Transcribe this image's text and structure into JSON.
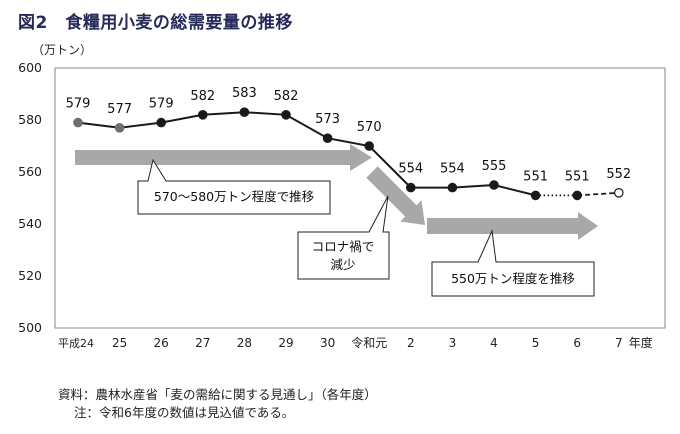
{
  "title": "図2　食糧用小麦の総需要量の推移",
  "chart_data": {
    "type": "line",
    "title": "図2　食糧用小麦の総需要量の推移",
    "ylabel": "（万トン）",
    "xlabel": "年度",
    "ylim": [
      500,
      600
    ],
    "yticks": [
      500,
      520,
      540,
      560,
      580,
      600
    ],
    "grid": false,
    "categories": [
      "平成24",
      "25",
      "26",
      "27",
      "28",
      "29",
      "30",
      "令和元",
      "2",
      "3",
      "4",
      "5",
      "6",
      "7"
    ],
    "series": [
      {
        "values": [
          579,
          577,
          579,
          582,
          583,
          582,
          573,
          570,
          554,
          554,
          555,
          551,
          551,
          552
        ],
        "data_labels": [
          "579",
          "577",
          "579",
          "582",
          "583",
          "582",
          "573",
          "570",
          "554",
          "554",
          "555",
          "551",
          "551",
          "552"
        ],
        "marker_colors": [
          "#6e6e6e",
          "#6e6e6e",
          "#1a1a1a",
          "#1a1a1a",
          "#1a1a1a",
          "#1a1a1a",
          "#1a1a1a",
          "#1a1a1a",
          "#1a1a1a",
          "#1a1a1a",
          "#1a1a1a",
          "#1a1a1a",
          "#1a1a1a",
          "#ffffff"
        ]
      }
    ],
    "annotations": [
      {
        "text": "570～580万トン程度で推移"
      },
      {
        "text": "コロナ禍で",
        "text2": "減少"
      },
      {
        "text": "550万トン程度を推移"
      }
    ]
  },
  "source": "資料：農林水産省「麦の需給に関する見通し」（各年度）",
  "note": "注：令和6年度の数値は見込値である。",
  "colors": {
    "title": "#262a5a",
    "arrow": "#a8a8a8",
    "line": "#1a1a1a"
  }
}
